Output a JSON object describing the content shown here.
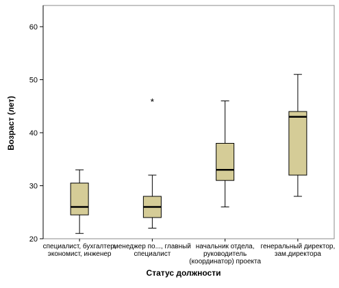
{
  "chart_data": {
    "type": "boxplot",
    "xlabel": "Статус должности",
    "ylabel": "Возраст (лет)",
    "ylim": [
      20,
      65
    ],
    "yticks": [
      20,
      30,
      40,
      50,
      60
    ],
    "grid": false,
    "categories": [
      [
        "специалист, бухгалтер,",
        "экономист, инженер"
      ],
      [
        "менеджер по..., главный",
        "специалист"
      ],
      [
        "начальник отдела,",
        "руководитель",
        "(координатор) проекта"
      ],
      [
        "генеральный директор,",
        "зам.директора"
      ]
    ],
    "boxes": [
      {
        "whisker_low": 21,
        "q1": 24.5,
        "median": 26,
        "q3": 30.5,
        "whisker_high": 33,
        "outliers": []
      },
      {
        "whisker_low": 22,
        "q1": 24,
        "median": 26,
        "q3": 28,
        "whisker_high": 32,
        "outliers": [
          46
        ]
      },
      {
        "whisker_low": 26,
        "q1": 31,
        "median": 33,
        "q3": 38,
        "whisker_high": 46,
        "outliers": []
      },
      {
        "whisker_low": 28,
        "q1": 32,
        "median": 43,
        "q3": 44,
        "whisker_high": 51,
        "outliers": []
      }
    ],
    "outlier_marker": "*",
    "colors": {
      "box_fill": "#d5cc97",
      "line": "#000000",
      "axis": "#000000",
      "frame": "#888888"
    }
  }
}
